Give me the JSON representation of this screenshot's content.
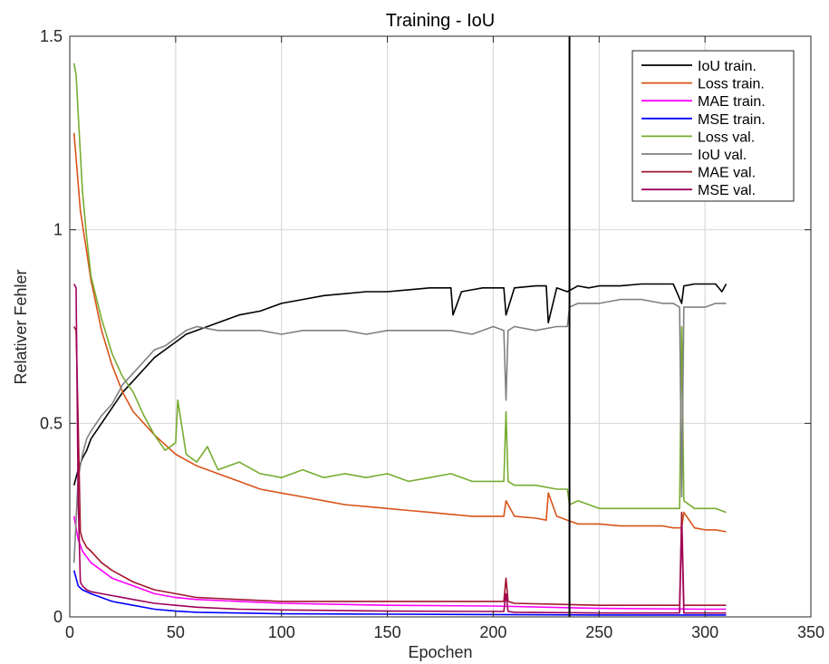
{
  "chart_data": {
    "type": "line",
    "title": "Training - IoU",
    "xlabel": "Epochen",
    "ylabel": "Relativer Fehler",
    "xlim": [
      0,
      350
    ],
    "ylim": [
      0,
      1.5
    ],
    "xticks": [
      0,
      50,
      100,
      150,
      200,
      250,
      300,
      350
    ],
    "xtick_labels": [
      "0",
      "50",
      "100",
      "150",
      "200",
      "250",
      "300",
      "350"
    ],
    "yticks": [
      0,
      0.5,
      1,
      1.5
    ],
    "ytick_labels": [
      "0",
      "0.5",
      "1",
      "1.5"
    ],
    "grid": true,
    "legend_position": "top-right",
    "vertical_marker_x": 236,
    "series": [
      {
        "name": "IoU train.",
        "color": "#000000",
        "x": [
          2,
          4,
          6,
          8,
          10,
          15,
          20,
          25,
          30,
          35,
          40,
          45,
          50,
          55,
          60,
          70,
          80,
          90,
          100,
          110,
          120,
          130,
          140,
          150,
          160,
          170,
          180,
          181,
          185,
          190,
          195,
          200,
          205,
          206,
          210,
          220,
          225,
          226,
          230,
          235,
          240,
          245,
          250,
          260,
          270,
          280,
          285,
          289,
          290,
          295,
          300,
          305,
          308,
          310
        ],
        "y": [
          0.34,
          0.38,
          0.41,
          0.43,
          0.46,
          0.5,
          0.54,
          0.58,
          0.61,
          0.64,
          0.67,
          0.69,
          0.71,
          0.73,
          0.74,
          0.76,
          0.78,
          0.79,
          0.81,
          0.82,
          0.83,
          0.835,
          0.84,
          0.84,
          0.845,
          0.85,
          0.85,
          0.78,
          0.84,
          0.845,
          0.85,
          0.85,
          0.85,
          0.78,
          0.85,
          0.855,
          0.855,
          0.76,
          0.85,
          0.84,
          0.855,
          0.85,
          0.855,
          0.855,
          0.86,
          0.86,
          0.86,
          0.81,
          0.855,
          0.86,
          0.86,
          0.86,
          0.84,
          0.86
        ]
      },
      {
        "name": "Loss train.",
        "color": "#d95319",
        "x": [
          2,
          5,
          10,
          15,
          20,
          25,
          30,
          40,
          50,
          60,
          70,
          80,
          90,
          100,
          110,
          120,
          130,
          140,
          150,
          160,
          170,
          180,
          190,
          200,
          205,
          206,
          210,
          220,
          225,
          226,
          230,
          235,
          240,
          250,
          260,
          270,
          280,
          285,
          289,
          290,
          295,
          300,
          305,
          310
        ],
        "y": [
          1.25,
          1.05,
          0.87,
          0.74,
          0.65,
          0.58,
          0.53,
          0.47,
          0.42,
          0.39,
          0.37,
          0.35,
          0.33,
          0.32,
          0.31,
          0.3,
          0.29,
          0.285,
          0.28,
          0.275,
          0.27,
          0.265,
          0.26,
          0.26,
          0.26,
          0.3,
          0.26,
          0.255,
          0.25,
          0.32,
          0.26,
          0.25,
          0.24,
          0.24,
          0.235,
          0.235,
          0.235,
          0.23,
          0.23,
          0.27,
          0.23,
          0.225,
          0.225,
          0.22
        ]
      },
      {
        "name": "MAE train.",
        "color": "#ff00ff",
        "x": [
          2,
          4,
          6,
          10,
          15,
          20,
          30,
          40,
          50,
          60,
          80,
          100,
          150,
          200,
          250,
          300,
          310
        ],
        "y": [
          0.26,
          0.2,
          0.17,
          0.14,
          0.12,
          0.1,
          0.08,
          0.06,
          0.05,
          0.045,
          0.04,
          0.035,
          0.03,
          0.028,
          0.022,
          0.02,
          0.02
        ]
      },
      {
        "name": "MSE train.",
        "color": "#0000ff",
        "x": [
          2,
          4,
          6,
          10,
          15,
          20,
          30,
          40,
          50,
          60,
          80,
          100,
          150,
          200,
          250,
          300,
          310
        ],
        "y": [
          0.12,
          0.08,
          0.07,
          0.06,
          0.05,
          0.04,
          0.03,
          0.02,
          0.015,
          0.012,
          0.01,
          0.008,
          0.007,
          0.006,
          0.005,
          0.005,
          0.005
        ]
      },
      {
        "name": "Loss val.",
        "color": "#77ac30",
        "x": [
          2,
          3,
          4,
          6,
          8,
          10,
          15,
          20,
          25,
          30,
          35,
          40,
          45,
          50,
          51,
          55,
          60,
          65,
          70,
          80,
          90,
          100,
          110,
          120,
          130,
          140,
          150,
          160,
          170,
          180,
          190,
          200,
          205,
          206,
          207,
          210,
          220,
          230,
          235,
          236,
          240,
          250,
          260,
          270,
          280,
          285,
          288,
          289,
          290,
          295,
          300,
          305,
          310
        ],
        "y": [
          1.43,
          1.4,
          1.3,
          1.1,
          0.98,
          0.88,
          0.77,
          0.68,
          0.62,
          0.58,
          0.52,
          0.47,
          0.43,
          0.45,
          0.56,
          0.42,
          0.4,
          0.44,
          0.38,
          0.4,
          0.37,
          0.36,
          0.38,
          0.36,
          0.37,
          0.36,
          0.37,
          0.35,
          0.36,
          0.37,
          0.35,
          0.35,
          0.35,
          0.53,
          0.35,
          0.34,
          0.34,
          0.33,
          0.33,
          0.29,
          0.3,
          0.28,
          0.28,
          0.28,
          0.28,
          0.28,
          0.28,
          0.75,
          0.3,
          0.28,
          0.28,
          0.28,
          0.27
        ]
      },
      {
        "name": "IoU val.",
        "color": "#808080",
        "x": [
          2,
          4,
          6,
          8,
          10,
          15,
          20,
          25,
          30,
          35,
          40,
          45,
          50,
          55,
          60,
          70,
          80,
          90,
          100,
          110,
          120,
          130,
          140,
          150,
          160,
          170,
          180,
          190,
          200,
          205,
          206,
          207,
          210,
          220,
          230,
          235,
          236,
          240,
          250,
          260,
          270,
          280,
          285,
          288,
          289,
          290,
          295,
          300,
          305,
          310
        ],
        "y": [
          0.14,
          0.36,
          0.42,
          0.46,
          0.48,
          0.52,
          0.55,
          0.6,
          0.63,
          0.66,
          0.69,
          0.7,
          0.72,
          0.74,
          0.75,
          0.74,
          0.74,
          0.74,
          0.73,
          0.74,
          0.74,
          0.74,
          0.73,
          0.74,
          0.74,
          0.74,
          0.74,
          0.73,
          0.75,
          0.74,
          0.56,
          0.74,
          0.75,
          0.74,
          0.75,
          0.75,
          0.8,
          0.81,
          0.81,
          0.82,
          0.82,
          0.81,
          0.81,
          0.8,
          0.31,
          0.8,
          0.8,
          0.8,
          0.81,
          0.81
        ]
      },
      {
        "name": "MAE val.",
        "color": "#a2142f",
        "x": [
          2,
          3,
          4,
          5,
          6,
          8,
          10,
          15,
          20,
          30,
          40,
          50,
          60,
          80,
          100,
          150,
          200,
          205,
          206,
          207,
          210,
          250,
          285,
          288,
          289,
          290,
          295,
          300,
          310
        ],
        "y": [
          0.75,
          0.74,
          0.5,
          0.22,
          0.2,
          0.18,
          0.17,
          0.14,
          0.12,
          0.09,
          0.07,
          0.06,
          0.05,
          0.045,
          0.04,
          0.04,
          0.04,
          0.04,
          0.1,
          0.04,
          0.035,
          0.03,
          0.03,
          0.03,
          0.27,
          0.03,
          0.03,
          0.03,
          0.03
        ]
      },
      {
        "name": "MSE val.",
        "color": "#a0005a",
        "x": [
          2,
          3,
          4,
          5,
          6,
          8,
          10,
          15,
          20,
          30,
          40,
          50,
          60,
          80,
          100,
          150,
          200,
          205,
          206,
          207,
          210,
          250,
          285,
          288,
          289,
          290,
          295,
          300,
          310
        ],
        "y": [
          0.86,
          0.85,
          0.3,
          0.09,
          0.08,
          0.07,
          0.065,
          0.06,
          0.055,
          0.045,
          0.035,
          0.03,
          0.025,
          0.02,
          0.018,
          0.015,
          0.014,
          0.014,
          0.06,
          0.014,
          0.012,
          0.01,
          0.01,
          0.01,
          0.24,
          0.01,
          0.01,
          0.01,
          0.01
        ]
      }
    ]
  }
}
